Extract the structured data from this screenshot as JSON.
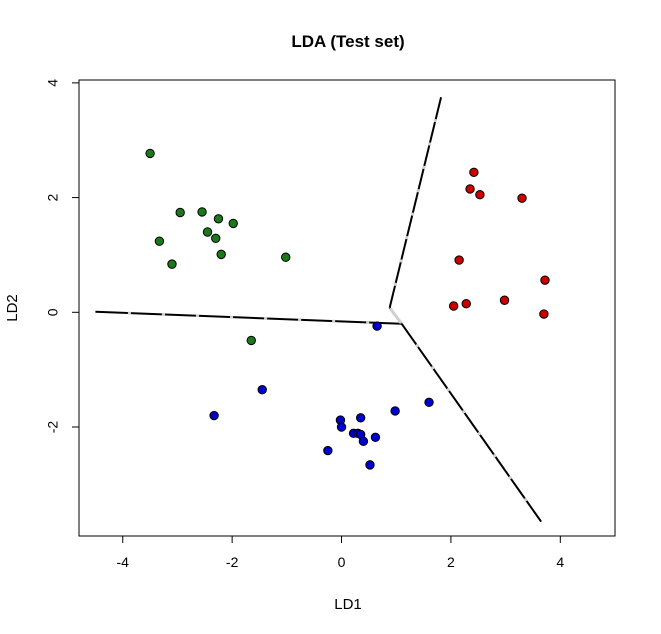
{
  "chart_data": {
    "type": "scatter",
    "title": "LDA (Test set)",
    "xlabel": "LD1",
    "ylabel": "LD2",
    "xlim": [
      -4.8,
      5.0
    ],
    "ylim": [
      -3.9,
      4.05
    ],
    "xticks": [
      -4,
      -2,
      0,
      2,
      4
    ],
    "yticks": [
      -2,
      0,
      2,
      4
    ],
    "x_tick_labels": [
      "-4",
      "-2",
      "0",
      "2",
      "4"
    ],
    "y_tick_labels": [
      "-2",
      "0",
      "2",
      "4"
    ],
    "grid": false,
    "legend": "none",
    "series": [
      {
        "color": "#1a7a1a",
        "points": [
          [
            -3.5,
            2.77
          ],
          [
            -2.95,
            1.74
          ],
          [
            -2.55,
            1.75
          ],
          [
            -2.25,
            1.63
          ],
          [
            -1.98,
            1.55
          ],
          [
            -3.33,
            1.24
          ],
          [
            -2.45,
            1.4
          ],
          [
            -2.3,
            1.29
          ],
          [
            -2.2,
            1.01
          ],
          [
            -3.1,
            0.84
          ],
          [
            -1.02,
            0.96
          ],
          [
            -1.65,
            -0.49
          ]
        ]
      },
      {
        "color": "#cc0000",
        "points": [
          [
            2.42,
            2.44
          ],
          [
            2.35,
            2.15
          ],
          [
            2.53,
            2.05
          ],
          [
            3.3,
            1.99
          ],
          [
            2.15,
            0.91
          ],
          [
            3.72,
            0.56
          ],
          [
            2.98,
            0.21
          ],
          [
            2.28,
            0.15
          ],
          [
            2.05,
            0.11
          ],
          [
            3.7,
            -0.03
          ]
        ]
      },
      {
        "color": "#0000cc",
        "points": [
          [
            0.65,
            -0.24
          ],
          [
            -1.45,
            -1.35
          ],
          [
            -2.33,
            -1.8
          ],
          [
            1.6,
            -1.57
          ],
          [
            0.98,
            -1.72
          ],
          [
            0.35,
            -1.84
          ],
          [
            -0.02,
            -1.88
          ],
          [
            0.0,
            -2.0
          ],
          [
            0.22,
            -2.11
          ],
          [
            0.3,
            -2.11
          ],
          [
            0.35,
            -2.13
          ],
          [
            0.62,
            -2.18
          ],
          [
            0.4,
            -2.25
          ],
          [
            -0.25,
            -2.41
          ],
          [
            0.52,
            -2.66
          ]
        ]
      }
    ],
    "boundaries": [
      [
        [
          0.88,
          0.08
        ],
        [
          1.82,
          3.75
        ]
      ],
      [
        [
          0.88,
          0.08
        ],
        [
          1.1,
          -0.2
        ]
      ],
      [
        [
          1.1,
          -0.2
        ],
        [
          -4.5,
          0.01
        ]
      ],
      [
        [
          1.1,
          -0.2
        ],
        [
          3.65,
          -3.65
        ]
      ]
    ],
    "boundary_color": "#000000",
    "faint_points_color": "#d0d0d0"
  }
}
